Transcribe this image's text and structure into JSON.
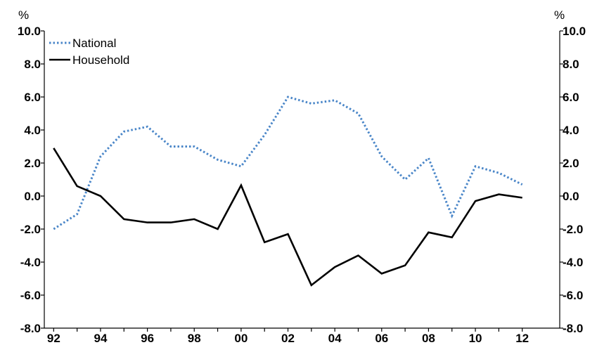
{
  "chart_data": {
    "type": "line",
    "y_unit_left": "%",
    "y_unit_right": "%",
    "x": [
      1992,
      1993,
      1994,
      1995,
      1996,
      1997,
      1998,
      1999,
      2000,
      2001,
      2002,
      2003,
      2004,
      2005,
      2006,
      2007,
      2008,
      2009,
      2010,
      2011,
      2012
    ],
    "x_tick_values": [
      1992,
      1994,
      1996,
      1998,
      2000,
      2002,
      2004,
      2006,
      2008,
      2010,
      2012
    ],
    "x_tick_labels": [
      "92",
      "94",
      "96",
      "98",
      "00",
      "02",
      "04",
      "06",
      "08",
      "10",
      "12"
    ],
    "xlim": [
      1991.6,
      2013.6
    ],
    "ylim": [
      -8,
      10
    ],
    "y_ticks": [
      10,
      8,
      6,
      4,
      2,
      0,
      -2,
      -4,
      -6,
      -8
    ],
    "y_tick_labels": [
      "10.0",
      "8.0",
      "6.0",
      "4.0",
      "2.0",
      "0.0",
      "-2.0",
      "-4.0",
      "-6.0",
      "-8.0"
    ],
    "legend_position": "top-left",
    "grid": false,
    "series": [
      {
        "name": "National",
        "color": "#4a86c8",
        "style": "dotted",
        "values": [
          -2.0,
          -1.1,
          2.4,
          3.9,
          4.2,
          3.0,
          3.0,
          2.2,
          1.8,
          3.7,
          6.0,
          5.6,
          5.8,
          5.0,
          2.4,
          1.0,
          2.3,
          -1.2,
          1.8,
          1.4,
          0.7
        ]
      },
      {
        "name": "Household",
        "color": "#000000",
        "style": "solid",
        "values": [
          2.9,
          0.6,
          0.0,
          -1.4,
          -1.6,
          -1.6,
          -1.4,
          -2.0,
          0.65,
          -2.8,
          -2.3,
          -5.4,
          -4.3,
          -3.6,
          -4.7,
          -4.2,
          -2.2,
          -2.5,
          -0.3,
          0.1,
          -0.1
        ]
      }
    ]
  }
}
